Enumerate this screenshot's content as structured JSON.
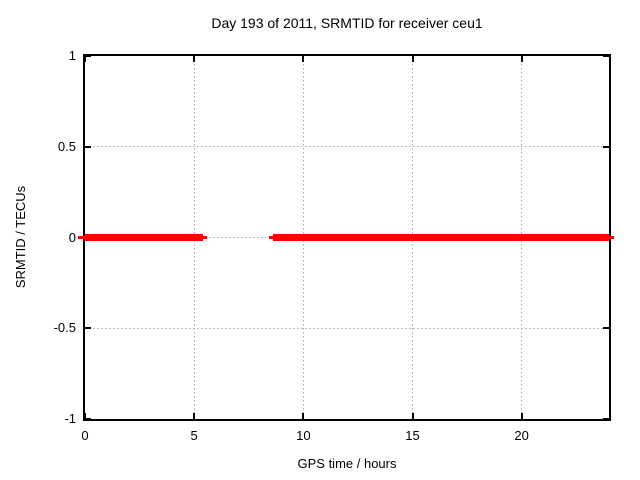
{
  "chart_data": {
    "type": "line",
    "title": "Day 193 of 2011, SRMTID for receiver ceu1",
    "xlabel": "GPS time / hours",
    "ylabel": "SRMTID / TECUs",
    "xlim": [
      0,
      24
    ],
    "ylim": [
      -1,
      1
    ],
    "xticks": [
      {
        "value": 0,
        "label": "0"
      },
      {
        "value": 5,
        "label": "5"
      },
      {
        "value": 10,
        "label": "10"
      },
      {
        "value": 15,
        "label": "15"
      },
      {
        "value": 20,
        "label": "20"
      }
    ],
    "yticks": [
      {
        "value": 1,
        "label": "1"
      },
      {
        "value": 0.5,
        "label": "0.5"
      },
      {
        "value": 0,
        "label": "0"
      },
      {
        "value": -0.5,
        "label": "-0.5"
      },
      {
        "value": -1,
        "label": "-1"
      }
    ],
    "grid": true,
    "legend": "none",
    "series": [
      {
        "name": "SRMTID",
        "color": "#ff0000",
        "y": 0,
        "segments": [
          {
            "x_start": 0,
            "x_end": 5.4
          },
          {
            "x_start": 8.6,
            "x_end": 24
          }
        ],
        "thin_end_caps": [
          {
            "x_start": -0.32,
            "x_end": 0
          },
          {
            "x_start": 5.4,
            "x_end": 5.58
          },
          {
            "x_start": 8.42,
            "x_end": 8.6
          },
          {
            "x_start": 24,
            "x_end": 24.23
          }
        ]
      }
    ],
    "colors": {
      "line": "#ff0000",
      "grid": "#a8a8a8",
      "border": "#000000",
      "text": "#000000",
      "background": "#ffffff"
    }
  }
}
